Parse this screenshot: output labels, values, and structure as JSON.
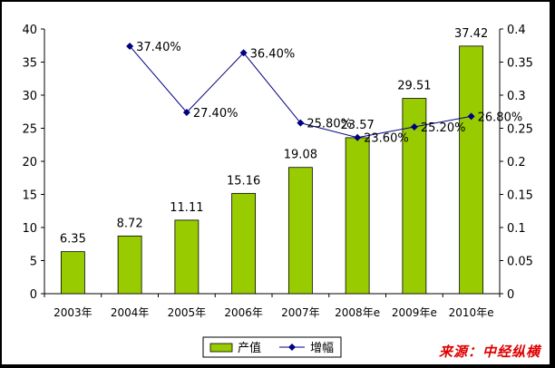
{
  "chart_data": {
    "type": "bar",
    "categories": [
      "2003年",
      "2004年",
      "2005年",
      "2006年",
      "2007年",
      "2008年e",
      "2009年e",
      "2010年e"
    ],
    "series": [
      {
        "name": "产值",
        "type": "bar",
        "axis": "left",
        "color": "#99cc00",
        "values": [
          6.35,
          8.72,
          11.11,
          15.16,
          19.08,
          23.57,
          29.51,
          37.42
        ],
        "labels": [
          "6.35",
          "8.72",
          "11.11",
          "15.16",
          "19.08",
          "23.57",
          "29.51",
          "37.42"
        ]
      },
      {
        "name": "增幅",
        "type": "line",
        "axis": "right",
        "color": "#000080",
        "values": [
          null,
          0.374,
          0.274,
          0.364,
          0.258,
          0.236,
          0.252,
          0.268
        ],
        "labels": [
          "",
          "37.40%",
          "27.40%",
          "36.40%",
          "25.80%",
          "23.60%",
          "25.20%",
          "26.80%"
        ]
      }
    ],
    "y_left": {
      "min": 0,
      "max": 40,
      "step": 5,
      "ticks": [
        "0",
        "5",
        "10",
        "15",
        "20",
        "25",
        "30",
        "35",
        "40"
      ]
    },
    "y_right": {
      "min": 0,
      "max": 0.4,
      "step": 0.05,
      "ticks": [
        "0",
        "0.05",
        "0.1",
        "0.15",
        "0.2",
        "0.25",
        "0.3",
        "0.35",
        "0.4"
      ]
    },
    "legend": {
      "position": "bottom",
      "entries": [
        "产值",
        "增幅"
      ]
    },
    "grid": false
  },
  "source": "来源：中经纵横"
}
